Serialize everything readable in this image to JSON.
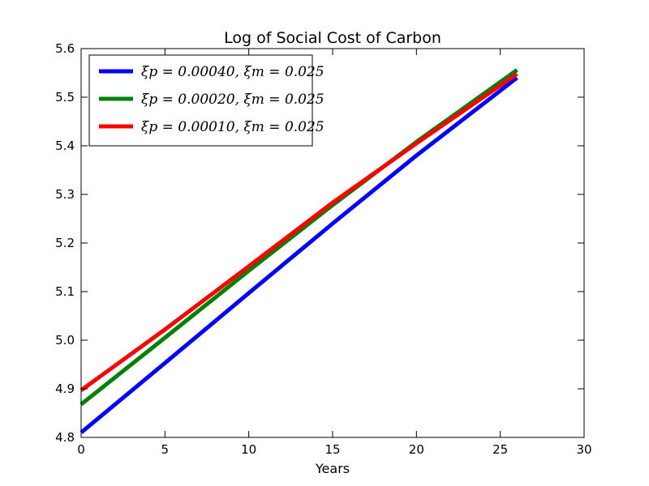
{
  "chart_data": {
    "type": "line",
    "title": "Log of Social Cost of Carbon",
    "xlabel": "Years",
    "ylabel": "",
    "xlim": [
      0,
      30
    ],
    "ylim": [
      4.8,
      5.6
    ],
    "xticks": [
      0,
      5,
      10,
      15,
      20,
      25,
      30
    ],
    "xtick_labels": [
      "0",
      "5",
      "10",
      "15",
      "20",
      "25",
      "30"
    ],
    "yticks": [
      4.8,
      4.9,
      5.0,
      5.1,
      5.2,
      5.3,
      5.4,
      5.5,
      5.6
    ],
    "ytick_labels": [
      "4.8",
      "4.9",
      "5.0",
      "5.1",
      "5.2",
      "5.3",
      "5.4",
      "5.5",
      "5.6"
    ],
    "grid": false,
    "legend_position": "top-left",
    "series": [
      {
        "name": "ξp = 0.00040, ξm = 0.025",
        "color": "#0000ff",
        "x": [
          0,
          5,
          10,
          15,
          20,
          26
        ],
        "y": [
          4.81,
          4.953,
          5.097,
          5.24,
          5.38,
          5.54
        ]
      },
      {
        "name": "ξp = 0.00020, ξm = 0.025",
        "color": "#008000",
        "x": [
          0,
          5,
          10,
          15,
          20,
          26
        ],
        "y": [
          4.868,
          5.005,
          5.143,
          5.278,
          5.408,
          5.556
        ]
      },
      {
        "name": "ξp = 0.00010, ξm = 0.025",
        "color": "#ff0000",
        "x": [
          0,
          5,
          10,
          15,
          20,
          26
        ],
        "y": [
          4.897,
          5.022,
          5.152,
          5.283,
          5.405,
          5.548
        ]
      }
    ]
  }
}
